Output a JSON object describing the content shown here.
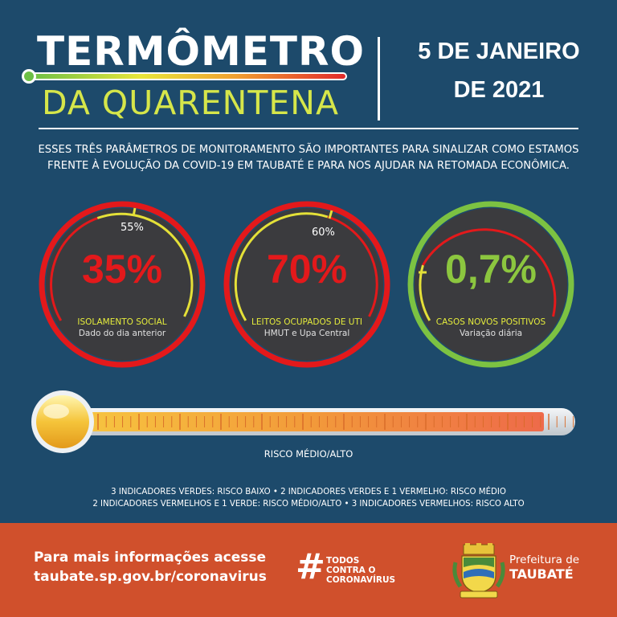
{
  "header": {
    "title_line1": "TERMÔMETRO",
    "title_line2": "DA QUARENTENA",
    "date_line1": "5 DE JANEIRO",
    "date_line2": "DE 2021"
  },
  "intro": "ESSES TRÊS PARÂMETROS DE MONITORAMENTO SÃO IMPORTANTES PARA SINALIZAR COMO ESTAMOS FRENTE À EVOLUÇÃO DA COVID-19 EM TAUBATÉ E PARA NOS AJUDAR NA RETOMADA ECONÔMICA.",
  "gauges": [
    {
      "value": "35%",
      "target": "55%",
      "label": "ISOLAMENTO SOCIAL",
      "sublabel": "Dado do dia anterior",
      "status_color": "#e3191b",
      "value_color": "#e3191b"
    },
    {
      "value": "70%",
      "target": "60%",
      "label": "LEITOS OCUPADOS DE UTI",
      "sublabel": "HMUT e Upa Central",
      "status_color": "#e3191b",
      "value_color": "#e3191b"
    },
    {
      "value": "0,7%",
      "target": "",
      "label": "CASOS NOVOS POSITIVOS",
      "sublabel": "Variação diária",
      "status_color": "#7cc242",
      "value_color": "#8cc63f"
    }
  ],
  "thermometer": {
    "risk_label": "RISCO MÉDIO/ALTO",
    "fill_fraction": 0.95
  },
  "legend": {
    "line1": "3 INDICADORES VERDES: RISCO BAIXO  •  2 INDICADORES VERDES E 1 VERMELHO: RISCO MÉDIO",
    "line2": "2 INDICADORES VERMELHOS E 1 VERDE: RISCO MÉDIO/ALTO  •  3 INDICADORES VERMELHOS: RISCO ALTO"
  },
  "footer": {
    "info_line1": "Para mais informações acesse",
    "info_line2": "taubate.sp.gov.br/coronavirus",
    "hashtag_symbol": "#",
    "hashtag_line1": "TODOS",
    "hashtag_line2": "CONTRA O",
    "hashtag_line3": "CORONAVÍRUS",
    "prefeitura_line1": "Prefeitura de",
    "prefeitura_line2": "TAUBATÉ"
  },
  "colors": {
    "background": "#1d4a6b",
    "footer": "#d0502c",
    "title_accent": "#d6e64a",
    "alert_red": "#e3191b",
    "ok_green": "#7cc242"
  }
}
